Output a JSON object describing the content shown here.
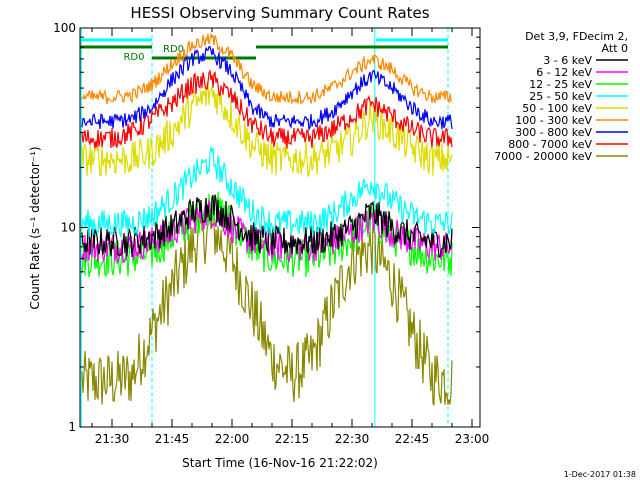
{
  "chart_data": {
    "type": "line",
    "title": "HESSI Observing Summary Count Rates",
    "xlabel": "Start Time (16-Nov-16 21:22:02)",
    "ylabel": "Count Rate (s⁻¹ detector⁻¹)",
    "yscale": "log",
    "ylim": [
      1,
      100
    ],
    "xlim": [
      "21:22",
      "23:02"
    ],
    "x_ticks": [
      "21:30",
      "21:45",
      "22:00",
      "22:15",
      "22:30",
      "22:45",
      "23:00"
    ],
    "y_ticks": [
      "1",
      "10",
      "100"
    ],
    "grid": false,
    "legend_position": "top-right",
    "legend_header": [
      "Det 3,9, FDecim 2,",
      "Att 0"
    ],
    "x": [
      "21:22",
      "21:30",
      "21:35",
      "21:40",
      "21:45",
      "21:50",
      "21:55",
      "22:00",
      "22:05",
      "22:10",
      "22:15",
      "22:20",
      "22:25",
      "22:30",
      "22:35",
      "22:40",
      "22:45",
      "22:50",
      "22:55"
    ],
    "series": [
      {
        "name": "3 - 6 keV",
        "color": "#000000",
        "values": [
          8.5,
          8.5,
          8.5,
          9,
          10,
          12,
          13,
          11,
          9,
          8.5,
          8.5,
          8.5,
          9,
          10,
          12,
          10,
          9,
          8.5,
          8.5
        ]
      },
      {
        "name": "6 - 12 keV",
        "color": "#ff00ff",
        "values": [
          8,
          8,
          8,
          8.5,
          9.5,
          11,
          12,
          10,
          8.5,
          8,
          8,
          8,
          8.5,
          9.5,
          11,
          9.5,
          8.5,
          8,
          8
        ]
      },
      {
        "name": "12 - 25 keV",
        "color": "#00ff00",
        "values": [
          7,
          7,
          7,
          7.5,
          9,
          11,
          13,
          10.5,
          8,
          7,
          7,
          7,
          7.5,
          9,
          11,
          9,
          8,
          7,
          7
        ]
      },
      {
        "name": "25 - 50 keV",
        "color": "#00ffff",
        "values": [
          10.5,
          10.5,
          10.5,
          11.5,
          14,
          18,
          22,
          16,
          12,
          10.5,
          10.5,
          10.5,
          11.5,
          14,
          17,
          13.5,
          11.5,
          10.5,
          10.5
        ]
      },
      {
        "name": "50 - 100 keV",
        "color": "#dddd00",
        "values": [
          22,
          22,
          22,
          24,
          30,
          40,
          48,
          36,
          26,
          22,
          22,
          22,
          24,
          28,
          36,
          30,
          25,
          22,
          22
        ]
      },
      {
        "name": "100 - 300 keV",
        "color": "#ff8800",
        "values": [
          45,
          45,
          46,
          52,
          66,
          82,
          88,
          72,
          52,
          45,
          45,
          45,
          50,
          60,
          70,
          62,
          50,
          45,
          45
        ]
      },
      {
        "name": "300 - 800 keV",
        "color": "#0000ff",
        "values": [
          34,
          34,
          35,
          40,
          55,
          70,
          75,
          60,
          40,
          34,
          34,
          34,
          38,
          48,
          58,
          50,
          40,
          34,
          34
        ]
      },
      {
        "name": "800 - 7000 keV",
        "color": "#ff0000",
        "values": [
          28,
          28,
          30,
          35,
          42,
          52,
          55,
          45,
          33,
          28,
          28,
          28,
          31,
          36,
          42,
          36,
          31,
          28,
          28
        ]
      },
      {
        "name": "7000 - 20000 keV",
        "color": "#888800",
        "values": [
          1.7,
          1.7,
          1.8,
          3,
          5,
          8,
          10,
          7,
          4,
          2.2,
          1.8,
          2.2,
          4,
          7,
          8,
          5.5,
          3,
          1.8,
          1.7
        ]
      }
    ],
    "annotations": [
      "RD0",
      "RD0"
    ],
    "timestamp": "1-Dec-2017 01:38"
  }
}
